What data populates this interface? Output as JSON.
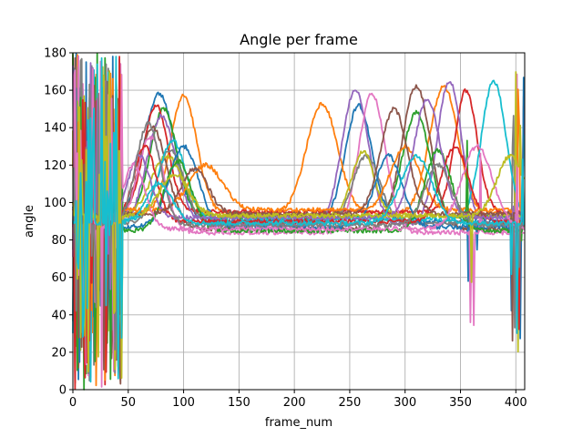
{
  "chart_data": {
    "type": "line",
    "title": "Angle per frame",
    "xlabel": "frame_num",
    "ylabel": "angle",
    "xlim": [
      0,
      408
    ],
    "ylim": [
      0,
      180
    ],
    "xticks": [
      0,
      50,
      100,
      150,
      200,
      250,
      300,
      350,
      400
    ],
    "yticks": [
      0,
      20,
      40,
      60,
      80,
      100,
      120,
      140,
      160,
      180
    ],
    "grid": true,
    "legend": "none",
    "colors": [
      "#1f77b4",
      "#ff7f0e",
      "#2ca02c",
      "#d62728",
      "#9467bd",
      "#8c564b",
      "#e377c2",
      "#7f7f7f",
      "#bcbd22",
      "#17becf"
    ],
    "series": [
      {
        "baseline": 90,
        "peaks": [
          {
            "x": 78,
            "y": 158,
            "w": 14
          },
          {
            "x": 258,
            "y": 152,
            "w": 12
          }
        ]
      },
      {
        "baseline": 94,
        "peaks": [
          {
            "x": 100,
            "y": 157,
            "w": 12
          },
          {
            "x": 225,
            "y": 153,
            "w": 14
          },
          {
            "x": 335,
            "y": 162,
            "w": 13
          }
        ]
      },
      {
        "baseline": 92,
        "peaks": [
          {
            "x": 82,
            "y": 150,
            "w": 12
          },
          {
            "x": 310,
            "y": 148,
            "w": 12
          }
        ]
      },
      {
        "baseline": 95,
        "peaks": [
          {
            "x": 75,
            "y": 152,
            "w": 11
          },
          {
            "x": 355,
            "y": 160,
            "w": 10
          }
        ]
      },
      {
        "baseline": 88,
        "peaks": [
          {
            "x": 80,
            "y": 146,
            "w": 13
          },
          {
            "x": 255,
            "y": 160,
            "w": 12
          },
          {
            "x": 340,
            "y": 165,
            "w": 11
          }
        ]
      },
      {
        "baseline": 86,
        "peaks": [
          {
            "x": 72,
            "y": 140,
            "w": 13
          },
          {
            "x": 310,
            "y": 162,
            "w": 13
          }
        ]
      },
      {
        "baseline": 84,
        "peaks": [
          {
            "x": 70,
            "y": 135,
            "w": 12
          },
          {
            "x": 270,
            "y": 158,
            "w": 12
          }
        ]
      },
      {
        "baseline": 89,
        "peaks": [
          {
            "x": 88,
            "y": 128,
            "w": 12
          },
          {
            "x": 265,
            "y": 125,
            "w": 12
          }
        ]
      },
      {
        "baseline": 93,
        "peaks": [
          {
            "x": 85,
            "y": 125,
            "w": 14
          },
          {
            "x": 262,
            "y": 127,
            "w": 10
          }
        ]
      },
      {
        "baseline": 91,
        "peaks": [
          {
            "x": 90,
            "y": 133,
            "w": 12
          },
          {
            "x": 380,
            "y": 165,
            "w": 11
          }
        ]
      },
      {
        "baseline": 87,
        "peaks": [
          {
            "x": 100,
            "y": 130,
            "w": 13
          },
          {
            "x": 285,
            "y": 125,
            "w": 12
          }
        ]
      },
      {
        "baseline": 96,
        "peaks": [
          {
            "x": 120,
            "y": 120,
            "w": 15
          },
          {
            "x": 300,
            "y": 130,
            "w": 13
          }
        ]
      },
      {
        "baseline": 85,
        "peaks": [
          {
            "x": 95,
            "y": 122,
            "w": 12
          },
          {
            "x": 330,
            "y": 128,
            "w": 12
          }
        ]
      },
      {
        "baseline": 90,
        "peaks": [
          {
            "x": 65,
            "y": 130,
            "w": 10
          },
          {
            "x": 345,
            "y": 130,
            "w": 12
          }
        ]
      },
      {
        "baseline": 92,
        "peaks": [
          {
            "x": 60,
            "y": 125,
            "w": 10
          },
          {
            "x": 320,
            "y": 155,
            "w": 12
          }
        ]
      },
      {
        "baseline": 94,
        "peaks": [
          {
            "x": 110,
            "y": 118,
            "w": 12
          },
          {
            "x": 290,
            "y": 150,
            "w": 12
          }
        ]
      },
      {
        "baseline": 86,
        "peaks": [
          {
            "x": 55,
            "y": 120,
            "w": 10
          },
          {
            "x": 365,
            "y": 130,
            "w": 14
          }
        ]
      },
      {
        "baseline": 88,
        "peaks": [
          {
            "x": 68,
            "y": 142,
            "w": 11
          },
          {
            "x": 330,
            "y": 120,
            "w": 12
          }
        ]
      },
      {
        "baseline": 93,
        "peaks": [
          {
            "x": 92,
            "y": 115,
            "w": 13
          },
          {
            "x": 395,
            "y": 125,
            "w": 12
          }
        ]
      },
      {
        "baseline": 89,
        "peaks": [
          {
            "x": 78,
            "y": 110,
            "w": 12
          },
          {
            "x": 310,
            "y": 125,
            "w": 14
          }
        ]
      }
    ]
  }
}
